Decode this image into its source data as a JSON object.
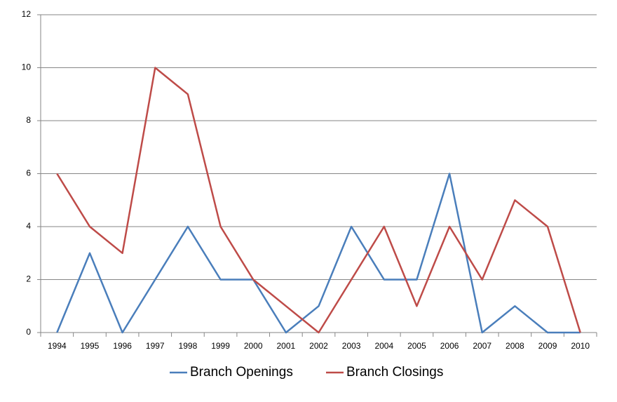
{
  "chart_data": {
    "type": "line",
    "categories": [
      "1994",
      "1995",
      "1996",
      "1997",
      "1998",
      "1999",
      "2000",
      "2001",
      "2002",
      "2003",
      "2004",
      "2005",
      "2006",
      "2007",
      "2008",
      "2009",
      "2010"
    ],
    "series": [
      {
        "name": "Branch Openings",
        "color": "#4a7ebb",
        "values": [
          0,
          3,
          0,
          2,
          4,
          2,
          2,
          0,
          1,
          4,
          2,
          2,
          6,
          0,
          1,
          0,
          0
        ]
      },
      {
        "name": "Branch Closings",
        "color": "#be4b48",
        "values": [
          6,
          4,
          3,
          10,
          9,
          4,
          2,
          1,
          0,
          2,
          4,
          1,
          4,
          2,
          5,
          4,
          0
        ]
      }
    ],
    "ylim": [
      0,
      12
    ],
    "yticks": [
      0,
      2,
      4,
      6,
      8,
      10,
      12
    ],
    "grid": true,
    "legend": "bottom"
  }
}
